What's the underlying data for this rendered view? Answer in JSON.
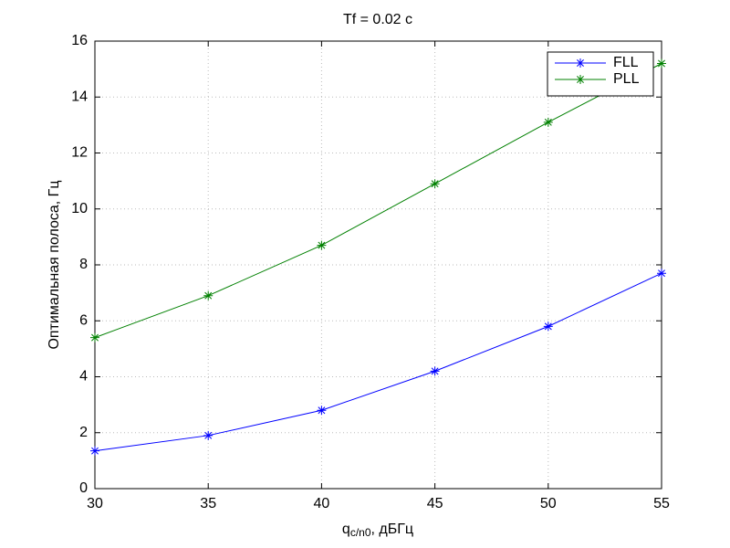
{
  "chart_data": {
    "type": "line",
    "title": "Tf = 0.02 c",
    "xlabel": {
      "base": "q",
      "sub": "c/n0",
      "rest": ", дБГц"
    },
    "ylabel": "Оптимальная полоса, Гц",
    "x": [
      30,
      35,
      40,
      45,
      50,
      55
    ],
    "series": [
      {
        "name": "FLL",
        "color": "#0000ff",
        "values": [
          1.35,
          1.9,
          2.8,
          4.2,
          5.8,
          7.7
        ]
      },
      {
        "name": "PLL",
        "color": "#008000",
        "values": [
          5.4,
          6.9,
          8.7,
          10.9,
          13.1,
          15.2
        ]
      }
    ],
    "xlim": [
      30,
      55
    ],
    "xticks": [
      30,
      35,
      40,
      45,
      50,
      55
    ],
    "ylim": [
      0,
      16
    ],
    "yticks": [
      0,
      2,
      4,
      6,
      8,
      10,
      12,
      14,
      16
    ],
    "grid": true,
    "legend": "northeast"
  }
}
